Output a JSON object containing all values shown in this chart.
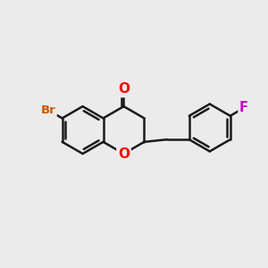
{
  "bg_color": "#ebebeb",
  "bond_color": "#1a1a1a",
  "bond_width": 1.8,
  "o_color": "#ff0000",
  "br_color": "#cc5500",
  "f_color": "#cc00cc",
  "font_size": 9.5,
  "fig_size": [
    3.0,
    3.0
  ],
  "dpi": 100,
  "xlim": [
    0,
    10
  ],
  "ylim": [
    0,
    10
  ]
}
